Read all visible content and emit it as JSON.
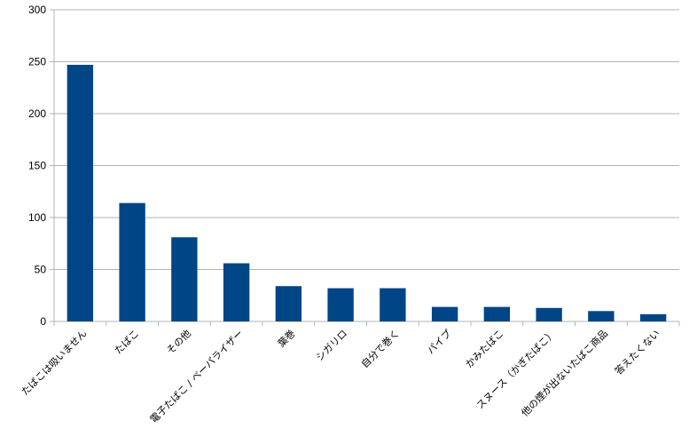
{
  "chart_data": {
    "type": "bar",
    "title": "",
    "xlabel": "",
    "ylabel": "",
    "ylim": [
      0,
      300
    ],
    "yticks": [
      0,
      50,
      100,
      150,
      200,
      250,
      300
    ],
    "grid": true,
    "legend": "none",
    "bar_color": "#004586",
    "categories": [
      "たばこは吸いません",
      "たばこ",
      "その他",
      "電子たばこ / ベーパライザー",
      "葉巻",
      "シガリロ",
      "自分で巻く",
      "パイプ",
      "かみたばこ",
      "スヌース（かぎたばこ）",
      "他の煙が出ないたばこ商品",
      "答えたくない"
    ],
    "values": [
      247,
      114,
      81,
      56,
      34,
      32,
      32,
      14,
      14,
      13,
      10,
      7
    ]
  }
}
